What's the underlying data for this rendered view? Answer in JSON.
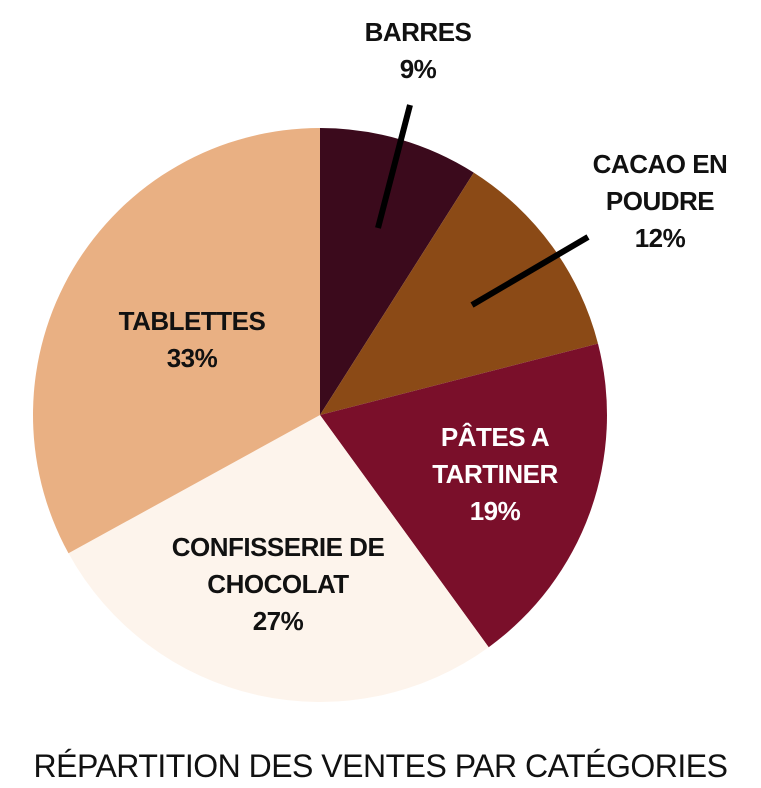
{
  "chart_data": {
    "type": "pie",
    "title": "RÉPARTITION DES VENTES PAR CATÉGORIES",
    "categories": [
      "BARRES",
      "CACAO EN POUDRE",
      "PÂTES A TARTINER",
      "CONFISSERIE DE CHOCOLAT",
      "TABLETTES"
    ],
    "values": [
      9,
      12,
      19,
      27,
      33
    ],
    "value_labels": [
      "9%",
      "12%",
      "19%",
      "27%",
      "33%"
    ],
    "colors": [
      "#3b0a1c",
      "#8b4a16",
      "#7a0f2a",
      "#fdf4ec",
      "#e9b083"
    ]
  }
}
